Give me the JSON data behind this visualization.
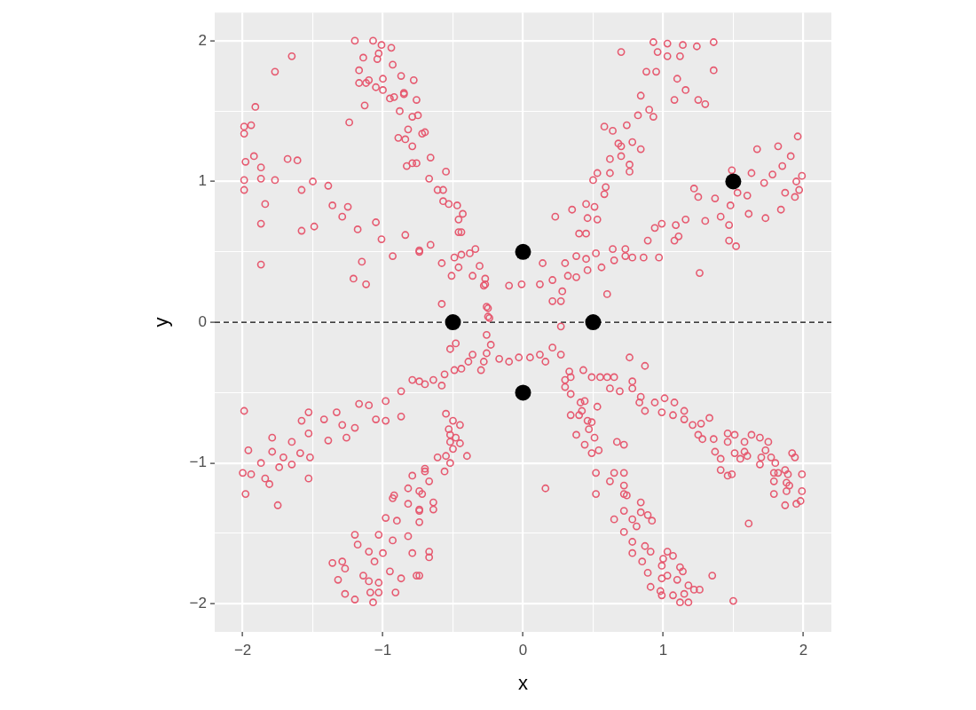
{
  "chart_data": {
    "type": "scatter",
    "xlabel": "x",
    "ylabel": "y",
    "xlim": [
      -2.2,
      2.2
    ],
    "ylim": [
      -2.2,
      2.2
    ],
    "xticks": [
      {
        "value": -2,
        "label": "−2"
      },
      {
        "value": -1.5,
        "label": null
      },
      {
        "value": -1,
        "label": "−1"
      },
      {
        "value": -0.5,
        "label": null
      },
      0,
      {
        "value": 0.5,
        "label": null
      },
      1,
      {
        "value": 1.5,
        "label": null
      },
      2
    ],
    "yticks": [
      {
        "value": -2,
        "label": "−2"
      },
      {
        "value": -1.5,
        "label": null
      },
      {
        "value": -1,
        "label": "−1"
      },
      {
        "value": -0.5,
        "label": null
      },
      0,
      {
        "value": 0.5,
        "label": null
      },
      1,
      {
        "value": 1.5,
        "label": null
      },
      2
    ],
    "grid": true,
    "marker": "circle",
    "ref_lines": [
      {
        "axis": "y",
        "value": 0,
        "color": "#000000",
        "line_style": "dashed"
      }
    ],
    "series": [
      {
        "color": "#e65a70",
        "x": [
          -1.2,
          -1.07,
          -1.01,
          -0.94,
          -1.17,
          -1.14,
          -1.04,
          -1.0,
          -0.92,
          -0.85,
          -0.78,
          -0.75,
          -0.82,
          -0.7,
          -0.89,
          -0.79,
          -0.66,
          -0.67,
          -0.57,
          -0.53,
          -0.46,
          -0.44,
          -0.49,
          -0.38,
          -0.31,
          -0.27,
          -0.26,
          -1.12,
          -1.77,
          -1.65,
          -1.91,
          -1.24,
          -1.13,
          -0.55,
          -0.61,
          -0.57,
          -0.47,
          -0.43,
          -0.46,
          -0.44,
          -0.34,
          -0.28,
          -0.25,
          -0.25,
          -1.03,
          -0.93,
          -0.95,
          -0.87,
          -0.85,
          -0.76,
          -0.88,
          -0.79,
          -0.84,
          -0.79,
          -0.72,
          -0.83,
          -0.76,
          -1.17,
          -1.1,
          -1.05,
          -1.0,
          -1.99,
          -1.99,
          -1.94,
          -1.98,
          -1.92,
          -1.99,
          -1.99,
          -1.87,
          -1.87,
          -1.84,
          -1.87,
          -1.87,
          -1.68,
          -1.61,
          -1.77,
          -1.58,
          -1.5,
          -1.58,
          -1.49,
          -1.39,
          -1.36,
          -1.25,
          -1.29,
          -1.18,
          -1.05,
          -1.01,
          -0.84,
          -0.74,
          -0.93,
          -1.15,
          -1.21,
          -1.12,
          -0.74,
          -0.66,
          -0.58,
          -0.51,
          -0.46,
          -0.36,
          -0.27,
          -0.58,
          -0.1,
          -0.01,
          0.14,
          0.12,
          0.21,
          0.21,
          0.27,
          0.28,
          0.7,
          0.58,
          0.64,
          0.68,
          0.62,
          0.7,
          0.53,
          0.5,
          0.62,
          0.59,
          0.58,
          0.45,
          0.35,
          0.51,
          0.46,
          0.53,
          0.4,
          0.45,
          0.23,
          0.93,
          1.03,
          1.14,
          1.24,
          1.36,
          1.36,
          0.96,
          1.03,
          1.12,
          0.88,
          0.95,
          1.1,
          1.16,
          1.08,
          1.25,
          1.3,
          0.84,
          0.93,
          0.9,
          0.82,
          0.74,
          0.78,
          0.7,
          0.84,
          0.76,
          0.76,
          0.3,
          0.38,
          0.32,
          0.38,
          0.46,
          0.52,
          0.56,
          0.64,
          0.65,
          0.73,
          0.6,
          0.45,
          0.73,
          0.78,
          0.86,
          0.89,
          0.97,
          0.94,
          0.99,
          1.09,
          1.08,
          1.16,
          1.11,
          1.3,
          1.22,
          1.25,
          1.26,
          1.37,
          1.41,
          1.47,
          1.47,
          1.52,
          1.48,
          1.49,
          1.53,
          1.6,
          1.63,
          1.61,
          1.67,
          1.72,
          1.73,
          1.78,
          1.82,
          1.85,
          1.84,
          1.87,
          1.91,
          1.94,
          1.96,
          1.97,
          1.99,
          1.95,
          -1.99,
          -1.96,
          -2.0,
          -1.98,
          -1.94,
          -1.87,
          -1.84,
          -1.81,
          -1.79,
          -1.75,
          -1.74,
          -1.71,
          -1.65,
          -1.79,
          -1.65,
          -1.59,
          -1.52,
          -1.53,
          -1.53,
          -1.58,
          -1.53,
          -1.42,
          -1.39,
          -1.33,
          -1.29,
          -1.26,
          -1.17,
          -1.2,
          -1.1,
          -1.05,
          -0.98,
          -0.98,
          -0.87,
          -0.87,
          -0.79,
          -0.7,
          -0.74,
          -0.64,
          -0.58,
          -0.56,
          -0.49,
          -0.44,
          -0.39,
          -0.36,
          -0.3,
          -0.28,
          -0.26,
          -0.23,
          -0.26,
          -0.52,
          -0.48,
          -0.24,
          -0.17,
          -0.1,
          -0.03,
          0.05,
          0.12,
          0.16,
          0.21,
          0.27,
          0.27,
          -0.55,
          -0.5,
          -0.53,
          -0.45,
          -0.52,
          -0.48,
          -0.52,
          -0.45,
          -0.5,
          -0.4,
          -0.55,
          -0.52,
          -0.61,
          -0.56,
          -0.67,
          -0.7,
          -0.72,
          -0.64,
          -0.64,
          -0.74,
          -0.74,
          -0.67,
          -0.67,
          -0.74,
          -0.7,
          -0.79,
          -0.74,
          -0.82,
          -0.92,
          -0.93,
          -0.82,
          -0.74,
          -0.98,
          -0.9,
          -0.82,
          -0.93,
          -1.03,
          -1.2,
          -1.18,
          -1.0,
          -1.1,
          -1.06,
          -0.95,
          -1.36,
          -1.29,
          -1.27,
          -1.32,
          -1.14,
          -1.1,
          -1.03,
          -1.27,
          -1.2,
          -1.09,
          -1.07,
          -1.03,
          -0.91,
          -0.87,
          -0.76,
          -0.79,
          0.34,
          0.38,
          0.41,
          0.44,
          0.4,
          0.42,
          0.46,
          0.49,
          0.47,
          0.53,
          0.51,
          0.44,
          0.49,
          0.54,
          0.52,
          0.52,
          0.16,
          0.3,
          0.34,
          0.3,
          0.33,
          0.34,
          0.43,
          0.62,
          0.65,
          0.72,
          0.72,
          0.65,
          0.72,
          0.72,
          0.72,
          0.74,
          0.84,
          0.84,
          0.92,
          0.89,
          0.78,
          0.81,
          0.78,
          0.87,
          0.91,
          0.78,
          0.85,
          0.89,
          0.91,
          1.0,
          0.99,
          1.03,
          1.07,
          1.12,
          1.14,
          0.99,
          1.03,
          1.1,
          0.98,
          0.99,
          1.07,
          1.12,
          1.18,
          1.18,
          1.26,
          1.22,
          1.35,
          1.5,
          1.15,
          0.49,
          0.55,
          0.6,
          0.62,
          0.65,
          0.69,
          0.67,
          0.72,
          0.76,
          0.87,
          0.78,
          0.78,
          0.84,
          0.83,
          0.87,
          0.94,
          1.01,
          0.99,
          1.07,
          1.08,
          1.15,
          1.15,
          1.21,
          1.27,
          1.33,
          1.25,
          1.28,
          1.36,
          1.37,
          1.41,
          1.41,
          1.46,
          1.46,
          1.46,
          1.49,
          1.51,
          1.51,
          1.55,
          1.58,
          1.58,
          1.6,
          1.63,
          1.61,
          1.69,
          1.7,
          1.69,
          1.75,
          1.73,
          1.77,
          1.8,
          1.79,
          1.82,
          1.79,
          1.79,
          1.87,
          1.89,
          1.88,
          1.9,
          1.88,
          1.92,
          1.94,
          1.99,
          1.99,
          1.98,
          1.95,
          1.87
        ],
        "values": [
          2.0,
          2.0,
          1.97,
          1.95,
          1.79,
          1.88,
          1.87,
          1.73,
          1.6,
          1.63,
          1.72,
          1.47,
          1.37,
          1.35,
          1.31,
          1.13,
          1.17,
          1.02,
          0.94,
          0.84,
          0.73,
          0.64,
          0.46,
          0.49,
          0.4,
          0.27,
          0.11,
          1.7,
          1.78,
          1.89,
          1.53,
          1.42,
          1.54,
          1.07,
          0.94,
          0.86,
          0.83,
          0.77,
          0.64,
          0.48,
          0.52,
          0.26,
          0.1,
          0.04,
          1.91,
          1.83,
          1.59,
          1.75,
          1.62,
          1.58,
          1.5,
          1.46,
          1.3,
          1.25,
          1.34,
          1.11,
          1.13,
          1.7,
          1.72,
          1.67,
          1.65,
          1.34,
          1.39,
          1.4,
          1.14,
          1.18,
          1.01,
          0.94,
          1.02,
          1.1,
          0.84,
          0.7,
          0.41,
          1.16,
          1.15,
          1.01,
          0.94,
          1.0,
          0.65,
          0.68,
          0.97,
          0.83,
          0.82,
          0.75,
          0.66,
          0.71,
          0.59,
          0.62,
          0.5,
          0.47,
          0.43,
          0.31,
          0.27,
          0.51,
          0.55,
          0.42,
          0.33,
          0.39,
          0.33,
          0.31,
          0.13,
          0.26,
          0.27,
          0.42,
          0.27,
          0.3,
          0.15,
          0.15,
          0.22,
          1.92,
          1.39,
          1.36,
          1.27,
          1.16,
          1.18,
          1.06,
          1.01,
          1.06,
          0.96,
          0.91,
          0.84,
          0.8,
          0.82,
          0.74,
          0.73,
          0.63,
          0.63,
          0.75,
          1.99,
          1.98,
          1.97,
          1.96,
          1.99,
          1.79,
          1.92,
          1.89,
          1.89,
          1.78,
          1.78,
          1.73,
          1.65,
          1.58,
          1.58,
          1.55,
          1.61,
          1.46,
          1.51,
          1.47,
          1.4,
          1.28,
          1.25,
          1.23,
          1.12,
          1.07,
          0.42,
          0.47,
          0.33,
          0.32,
          0.37,
          0.49,
          0.39,
          0.52,
          0.44,
          0.52,
          0.2,
          0.45,
          0.47,
          0.46,
          0.46,
          0.58,
          0.46,
          0.67,
          0.7,
          0.69,
          0.58,
          0.73,
          0.61,
          0.72,
          0.95,
          0.89,
          0.35,
          0.88,
          0.75,
          0.69,
          0.58,
          0.54,
          0.83,
          1.08,
          0.92,
          0.9,
          1.06,
          0.77,
          1.23,
          0.99,
          0.74,
          1.05,
          1.25,
          1.11,
          0.8,
          0.92,
          1.18,
          0.89,
          1.32,
          0.94,
          1.04,
          1.0,
          -0.63,
          -0.91,
          -1.07,
          -1.22,
          -1.08,
          -1.0,
          -1.11,
          -1.15,
          -0.92,
          -1.3,
          -1.03,
          -0.96,
          -1.01,
          -0.82,
          -0.85,
          -0.93,
          -0.96,
          -1.11,
          -0.79,
          -0.7,
          -0.64,
          -0.69,
          -0.84,
          -0.64,
          -0.73,
          -0.82,
          -0.58,
          -0.75,
          -0.59,
          -0.69,
          -0.7,
          -0.56,
          -0.49,
          -0.67,
          -0.41,
          -0.44,
          -0.42,
          -0.41,
          -0.45,
          -0.37,
          -0.34,
          -0.33,
          -0.28,
          -0.23,
          -0.34,
          -0.28,
          -0.22,
          -0.16,
          -0.09,
          -0.19,
          -0.15,
          0.03,
          -0.26,
          -0.28,
          -0.25,
          -0.25,
          -0.23,
          -0.28,
          -0.18,
          -0.23,
          -0.03,
          -0.65,
          -0.7,
          -0.76,
          -0.73,
          -0.8,
          -0.82,
          -0.85,
          -0.86,
          -0.9,
          -0.95,
          -0.95,
          -1.0,
          -0.96,
          -1.06,
          -1.13,
          -1.04,
          -1.22,
          -1.28,
          -1.33,
          -1.33,
          -1.42,
          -1.63,
          -1.67,
          -1.8,
          -1.06,
          -1.09,
          -1.2,
          -1.18,
          -1.23,
          -1.25,
          -1.29,
          -1.34,
          -1.39,
          -1.41,
          -1.52,
          -1.55,
          -1.51,
          -1.51,
          -1.58,
          -1.64,
          -1.63,
          -1.7,
          -1.77,
          -1.71,
          -1.7,
          -1.75,
          -1.83,
          -1.8,
          -1.84,
          -1.85,
          -1.93,
          -1.97,
          -1.92,
          -1.99,
          -1.92,
          -1.92,
          -1.82,
          -1.8,
          -1.64,
          -0.66,
          -0.8,
          -0.57,
          -0.56,
          -0.66,
          -0.63,
          -0.7,
          -0.71,
          -0.76,
          -0.6,
          -0.82,
          -0.87,
          -0.93,
          -0.91,
          -1.07,
          -1.22,
          -1.18,
          -0.41,
          -0.51,
          -0.46,
          -0.35,
          -0.39,
          -0.34,
          -1.13,
          -1.07,
          -1.16,
          -1.22,
          -1.4,
          -1.49,
          -1.34,
          -1.07,
          -1.23,
          -1.28,
          -1.35,
          -1.41,
          -1.37,
          -1.4,
          -1.45,
          -1.56,
          -1.59,
          -1.63,
          -1.64,
          -1.7,
          -1.78,
          -1.88,
          -1.68,
          -1.73,
          -1.63,
          -1.66,
          -1.74,
          -1.77,
          -1.82,
          -1.8,
          -1.83,
          -1.91,
          -1.94,
          -1.94,
          -1.99,
          -1.99,
          -1.87,
          -1.9,
          -1.9,
          -1.8,
          -1.98,
          -1.93,
          -0.39,
          -0.39,
          -0.39,
          -0.47,
          -0.39,
          -0.49,
          -0.85,
          -0.87,
          -0.25,
          -0.31,
          -0.42,
          -0.47,
          -0.53,
          -0.57,
          -0.63,
          -0.57,
          -0.54,
          -0.64,
          -0.66,
          -0.57,
          -0.63,
          -0.69,
          -0.73,
          -0.72,
          -0.68,
          -0.8,
          -0.83,
          -0.83,
          -0.92,
          -0.97,
          -1.05,
          -0.79,
          -0.85,
          -1.09,
          -1.08,
          -0.8,
          -0.93,
          -0.97,
          -0.92,
          -0.85,
          -0.95,
          -0.8,
          -1.43,
          -0.82,
          -0.96,
          -1.01,
          -0.85,
          -0.91,
          -0.96,
          -1.0,
          -1.07,
          -1.07,
          -1.13,
          -1.22,
          -1.05,
          -1.08,
          -1.14,
          -1.16,
          -1.2,
          -0.93,
          -0.96,
          -1.08,
          -1.2,
          -1.27,
          -1.29,
          -1.3
        ]
      },
      {
        "color": "#000000",
        "x": [
          -0.5,
          0,
          0,
          0.5,
          1.5
        ],
        "values": [
          0,
          0.5,
          -0.5,
          0,
          1
        ]
      }
    ]
  }
}
